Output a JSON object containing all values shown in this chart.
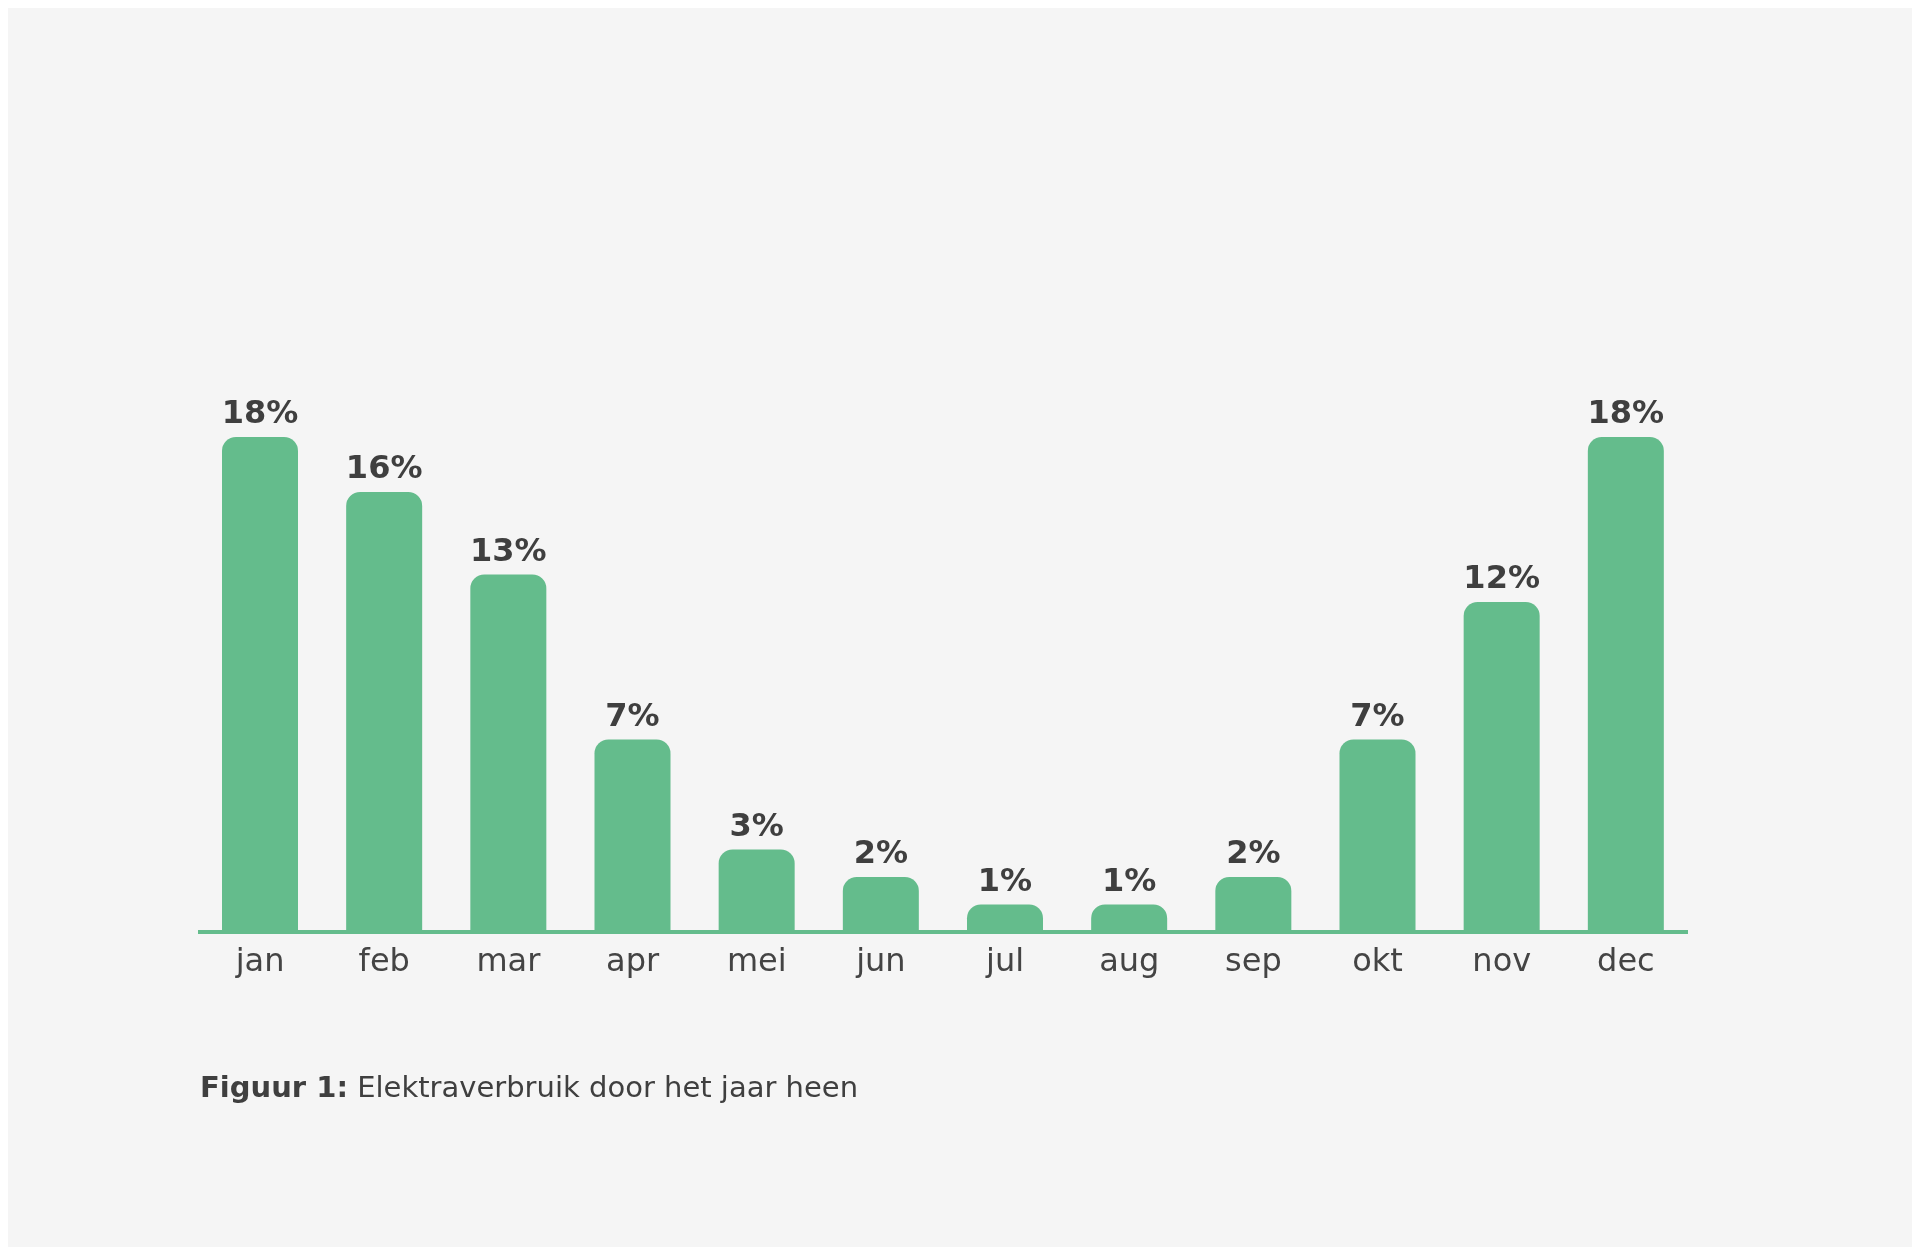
{
  "chart_data": {
    "type": "bar",
    "categories": [
      "jan",
      "feb",
      "mar",
      "apr",
      "mei",
      "jun",
      "jul",
      "aug",
      "sep",
      "okt",
      "nov",
      "dec"
    ],
    "values": [
      18,
      16,
      13,
      7,
      3,
      2,
      1,
      1,
      2,
      7,
      12,
      18
    ],
    "value_labels": [
      "18%",
      "16%",
      "13%",
      "7%",
      "3%",
      "2%",
      "1%",
      "1%",
      "2%",
      "7%",
      "12%",
      "18%"
    ],
    "color": "#64bc8c",
    "tick_labels": "x",
    "annotations": [
      "Figuur 1: Elektraverbruik door het jaar heen"
    ]
  }
}
